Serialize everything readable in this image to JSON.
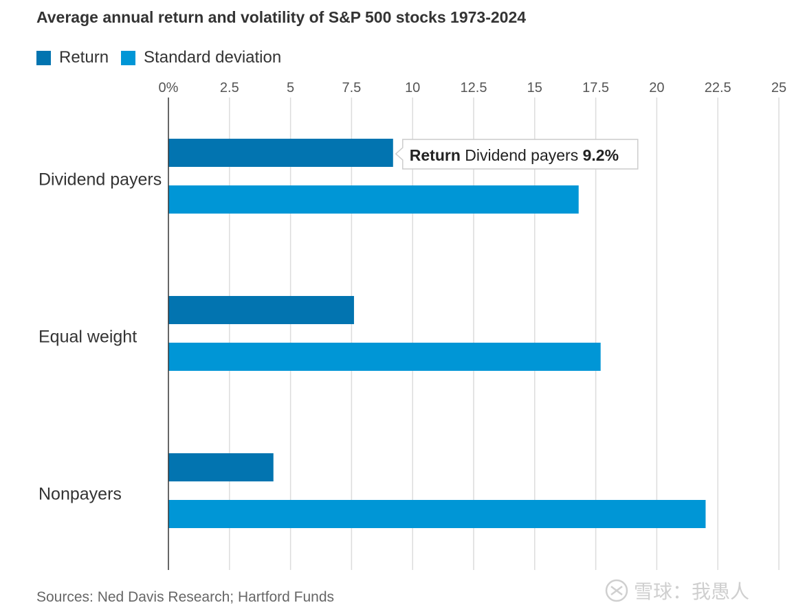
{
  "title": "Average annual return and volatility of S&P 500 stocks 1973-2024",
  "legend": [
    {
      "label": "Return",
      "color": "#0274b0"
    },
    {
      "label": "Standard deviation",
      "color": "#0096d6"
    }
  ],
  "source": "Sources: Ned Davis Research; Hartford Funds",
  "watermark": "雪球：我愚人",
  "tooltip": {
    "series": "Return",
    "category": "Dividend payers",
    "value": "9.2%"
  },
  "chart_data": {
    "type": "bar",
    "orientation": "horizontal",
    "title": "Average annual return and volatility of S&P 500 stocks 1973-2024",
    "xlabel": "",
    "ylabel": "",
    "xlim": [
      0,
      25
    ],
    "x_ticks": [
      "0%",
      "2.5",
      "5",
      "7.5",
      "10",
      "12.5",
      "15",
      "17.5",
      "20",
      "22.5",
      "25"
    ],
    "x_tick_values": [
      0,
      2.5,
      5,
      7.5,
      10,
      12.5,
      15,
      17.5,
      20,
      22.5,
      25
    ],
    "grid": true,
    "legend_position": "top-left",
    "categories": [
      "Dividend payers",
      "Equal weight",
      "Nonpayers"
    ],
    "series": [
      {
        "name": "Return",
        "color": "#0274b0",
        "values": [
          9.2,
          7.6,
          4.3
        ]
      },
      {
        "name": "Standard deviation",
        "color": "#0096d6",
        "values": [
          16.8,
          17.7,
          22.0
        ]
      }
    ]
  }
}
